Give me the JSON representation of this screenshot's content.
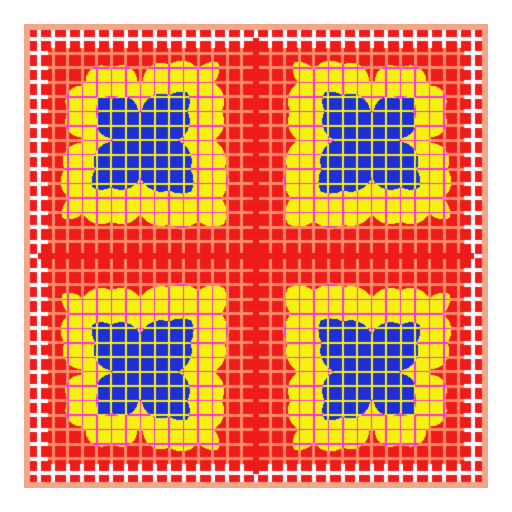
{
  "image": {
    "kind": "fractal-pattern",
    "palette": {
      "background": "#ffffff",
      "border": "#f3a68a",
      "outer": "#ee1b1b",
      "middle": "#f5f111",
      "core": "#1f2fd6",
      "dots": "#ff2ee8",
      "tint": "#ff8a6a"
    }
  }
}
